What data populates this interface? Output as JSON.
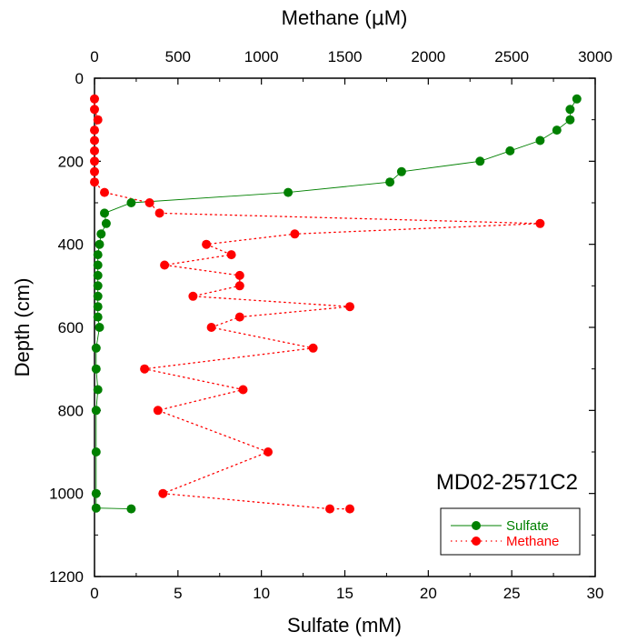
{
  "chart_data": {
    "type": "scatter",
    "title": "",
    "annotation": "MD02-2571C2",
    "y_axis": {
      "label": "Depth (cm)",
      "range": [
        0,
        1200
      ],
      "reversed": true,
      "ticks": [
        0,
        200,
        400,
        600,
        800,
        1000,
        1200
      ]
    },
    "x_axis_bottom": {
      "label": "Sulfate (mM)",
      "range": [
        0,
        30
      ],
      "ticks": [
        0,
        5,
        10,
        15,
        20,
        25,
        30
      ]
    },
    "x_axis_top": {
      "label_prefix": "Methane (",
      "label_mu": "μ",
      "label_suffix": "M)",
      "range": [
        0,
        3000
      ],
      "ticks": [
        0,
        500,
        1000,
        1500,
        2000,
        2500,
        3000
      ]
    },
    "legend": {
      "placement": "bottom-right"
    },
    "series": [
      {
        "name": "Sulfate",
        "axis": "bottom",
        "color": "#008000",
        "line": "solid",
        "points": [
          [
            28.9,
            50
          ],
          [
            28.5,
            75
          ],
          [
            28.5,
            100
          ],
          [
            27.7,
            125
          ],
          [
            26.7,
            150
          ],
          [
            24.9,
            175
          ],
          [
            23.1,
            200
          ],
          [
            18.4,
            225
          ],
          [
            17.7,
            250
          ],
          [
            11.6,
            275
          ],
          [
            2.2,
            300
          ],
          [
            0.6,
            325
          ],
          [
            0.7,
            350
          ],
          [
            0.4,
            375
          ],
          [
            0.3,
            400
          ],
          [
            0.2,
            425
          ],
          [
            0.2,
            450
          ],
          [
            0.2,
            475
          ],
          [
            0.2,
            500
          ],
          [
            0.2,
            525
          ],
          [
            0.2,
            550
          ],
          [
            0.2,
            575
          ],
          [
            0.3,
            600
          ],
          [
            0.1,
            650
          ],
          [
            0.1,
            700
          ],
          [
            0.2,
            750
          ],
          [
            0.1,
            800
          ],
          [
            0.1,
            900
          ],
          [
            0.1,
            1000
          ],
          [
            0.1,
            1035
          ],
          [
            2.2,
            1037
          ]
        ]
      },
      {
        "name": "Methane",
        "axis": "top",
        "color": "#ff0000",
        "line": "dotted",
        "points": [
          [
            0,
            50
          ],
          [
            0,
            75
          ],
          [
            20,
            100
          ],
          [
            0,
            125
          ],
          [
            0,
            150
          ],
          [
            0,
            175
          ],
          [
            0,
            200
          ],
          [
            0,
            225
          ],
          [
            0,
            250
          ],
          [
            60,
            275
          ],
          [
            330,
            300
          ],
          [
            390,
            325
          ],
          [
            2670,
            350
          ],
          [
            1200,
            375
          ],
          [
            670,
            400
          ],
          [
            820,
            425
          ],
          [
            420,
            450
          ],
          [
            870,
            475
          ],
          [
            870,
            500
          ],
          [
            590,
            525
          ],
          [
            1530,
            550
          ],
          [
            870,
            575
          ],
          [
            700,
            600
          ],
          [
            1310,
            650
          ],
          [
            300,
            700
          ],
          [
            890,
            750
          ],
          [
            380,
            800
          ],
          [
            1040,
            900
          ],
          [
            410,
            1000
          ],
          [
            1410,
            1037
          ],
          [
            1530,
            1037
          ]
        ]
      }
    ]
  }
}
